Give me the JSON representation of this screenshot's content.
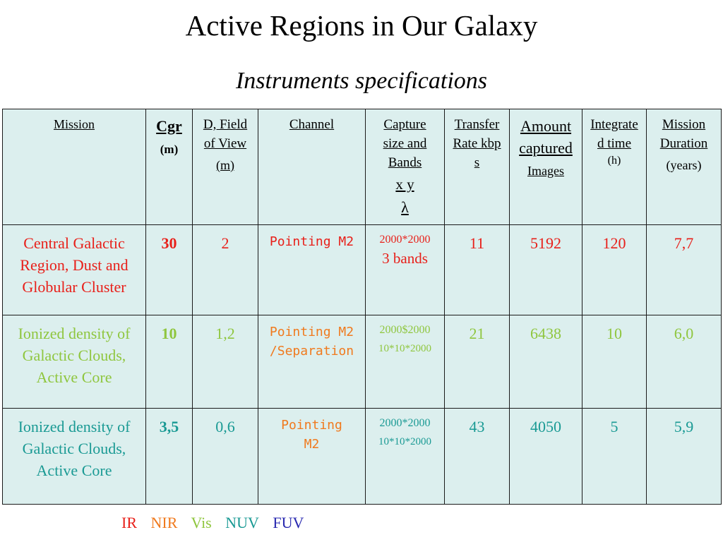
{
  "title": "Active Regions in Our Galaxy",
  "subtitle": "Instruments specifications",
  "header": {
    "mission": "Mission",
    "cgr": "Cgr",
    "cgr_unit": "(m)",
    "fov": "D, Field of View",
    "fov_unit": "(m)",
    "channel": "Channel",
    "capture": "Capture size and Bands",
    "capture_xy": "x y",
    "capture_lambda": "λ",
    "transfer": "Transfer Rate kbps",
    "amount": "Amount captured",
    "amount_unit": "Images",
    "integrated": "Integrated time",
    "integrated_unit": "(h)",
    "duration": "Mission Duration",
    "duration_unit": "(years)"
  },
  "rows": [
    {
      "color": "#e8201a",
      "mission": "Central Galactic Region, Dust and Globular Cluster",
      "cgr": "30",
      "fov": "2",
      "channel": "Pointing M2",
      "capture_line1": "2000*2000",
      "capture_line2": "3 bands",
      "transfer": "11",
      "amount": "5192",
      "integrated": "120",
      "duration": "7,7"
    },
    {
      "color": "#8fc63e",
      "channel_color": "#f07a1e",
      "mission": "Ionized density of Galactic Clouds, Active Core",
      "cgr": "10",
      "fov": "1,2",
      "channel": "Pointing M2 /Separation",
      "capture_line1": "2000$2000",
      "capture_line2": "10*10*2000",
      "transfer": "21",
      "amount": "6438",
      "integrated": "10",
      "duration": "6,0"
    },
    {
      "color": "#1a9a94",
      "channel_color": "#f07a1e",
      "mission": "Ionized density of Galactic Clouds, Active Core",
      "cgr": "3,5",
      "fov": "0,6",
      "channel": "Pointing M2",
      "capture_line1": "2000*2000",
      "capture_line2": "10*10*2000",
      "transfer": "43",
      "amount": "4050",
      "integrated": "5",
      "duration": "5,9"
    }
  ],
  "legend": [
    "IR",
    "NIR",
    "Vis",
    "NUV",
    "FUV"
  ]
}
